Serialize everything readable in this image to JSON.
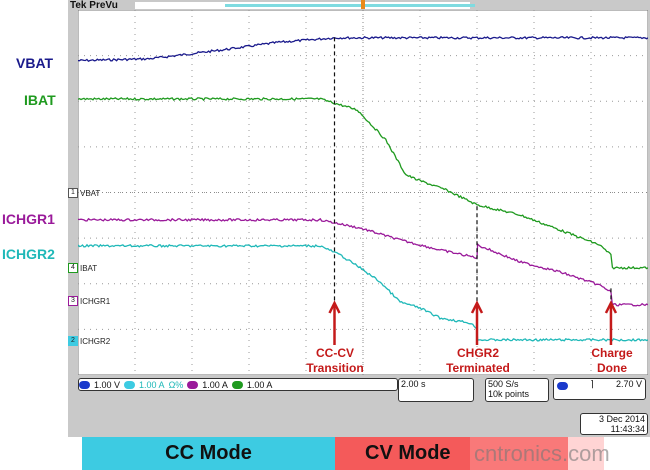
{
  "scope": {
    "brand": "Tek",
    "mode": "PreVu"
  },
  "labels": {
    "vbat": "VBAT",
    "ibat": "IBAT",
    "ichgr1": "ICHGR1",
    "ichgr2": "ICHGR2"
  },
  "channel_markers": [
    {
      "num": "1",
      "name": "VBAT"
    },
    {
      "num": "4",
      "name": "IBAT"
    },
    {
      "num": "3",
      "name": "ICHGR1"
    },
    {
      "num": "2",
      "name": "ICHGR2"
    }
  ],
  "annotations": [
    {
      "line1": "CC-CV",
      "line2": "Transition"
    },
    {
      "line1": "CHGR2",
      "line2": "Terminated"
    },
    {
      "line1": "Charge",
      "line2": "Done"
    }
  ],
  "status": {
    "ch1": "1.00 V",
    "ch2": "1.00 A",
    "ch3": "1.00 A",
    "ch4": "1.00 A",
    "bw": "Ω%",
    "timebase": "2.00 s",
    "rate": "500 S/s",
    "points": "10k points",
    "trig_level": "2.70 V",
    "date": "3 Dec  2014",
    "time": "11:43:34"
  },
  "modes": {
    "cc": "CC Mode",
    "cv": "CV Mode"
  },
  "watermark": "cntronics.com",
  "colors": {
    "vbat": "#1a1a8c",
    "ibat": "#1f9a1f",
    "ichgr1": "#9a1a9a",
    "ichgr2": "#1fb8b8",
    "annotation": "#c41a1a",
    "cc": "#3dcbe2",
    "cv": "#f45a5a"
  },
  "chart_data": {
    "type": "line",
    "xlabel": "",
    "ylabel": "",
    "x_unit": "s",
    "x_per_div": 2.0,
    "xlim": [
      0,
      20
    ],
    "ylim_divisions": [
      0,
      8
    ],
    "grid": true,
    "events_s": [
      9.0,
      14.0,
      18.7
    ],
    "series": [
      {
        "name": "VBAT",
        "points": [
          [
            0,
            6.89
          ],
          [
            2.5,
            6.93
          ],
          [
            5,
            7.12
          ],
          [
            7,
            7.29
          ],
          [
            9,
            7.39
          ],
          [
            20,
            7.39
          ]
        ]
      },
      {
        "name": "IBAT",
        "points": [
          [
            0,
            6.05
          ],
          [
            8.5,
            6.05
          ],
          [
            9.8,
            5.81
          ],
          [
            10.8,
            5.15
          ],
          [
            11.5,
            4.39
          ],
          [
            11.9,
            4.28
          ],
          [
            12.9,
            4.06
          ],
          [
            14,
            3.73
          ],
          [
            15.5,
            3.51
          ],
          [
            16.9,
            3.18
          ],
          [
            18.3,
            2.85
          ],
          [
            18.7,
            2.63
          ],
          [
            18.75,
            2.35
          ],
          [
            20,
            2.35
          ]
        ]
      },
      {
        "name": "ICHGR1",
        "points": [
          [
            0,
            3.4
          ],
          [
            8.5,
            3.4
          ],
          [
            9.9,
            3.22
          ],
          [
            11.3,
            2.96
          ],
          [
            12.7,
            2.74
          ],
          [
            14,
            2.57
          ],
          [
            14.02,
            2.85
          ],
          [
            15.5,
            2.48
          ],
          [
            16.9,
            2.26
          ],
          [
            18.3,
            1.97
          ],
          [
            18.7,
            1.82
          ],
          [
            18.75,
            1.54
          ],
          [
            20,
            1.54
          ]
        ]
      },
      {
        "name": "ICHGR2",
        "points": [
          [
            0,
            2.83
          ],
          [
            8.5,
            2.83
          ],
          [
            9.2,
            2.63
          ],
          [
            9.9,
            2.35
          ],
          [
            10.6,
            2.04
          ],
          [
            11.3,
            1.6
          ],
          [
            12,
            1.47
          ],
          [
            12.7,
            1.25
          ],
          [
            13.75,
            1.14
          ],
          [
            14,
            1.03
          ],
          [
            14.02,
            0.77
          ],
          [
            20,
            0.77
          ]
        ]
      }
    ]
  }
}
